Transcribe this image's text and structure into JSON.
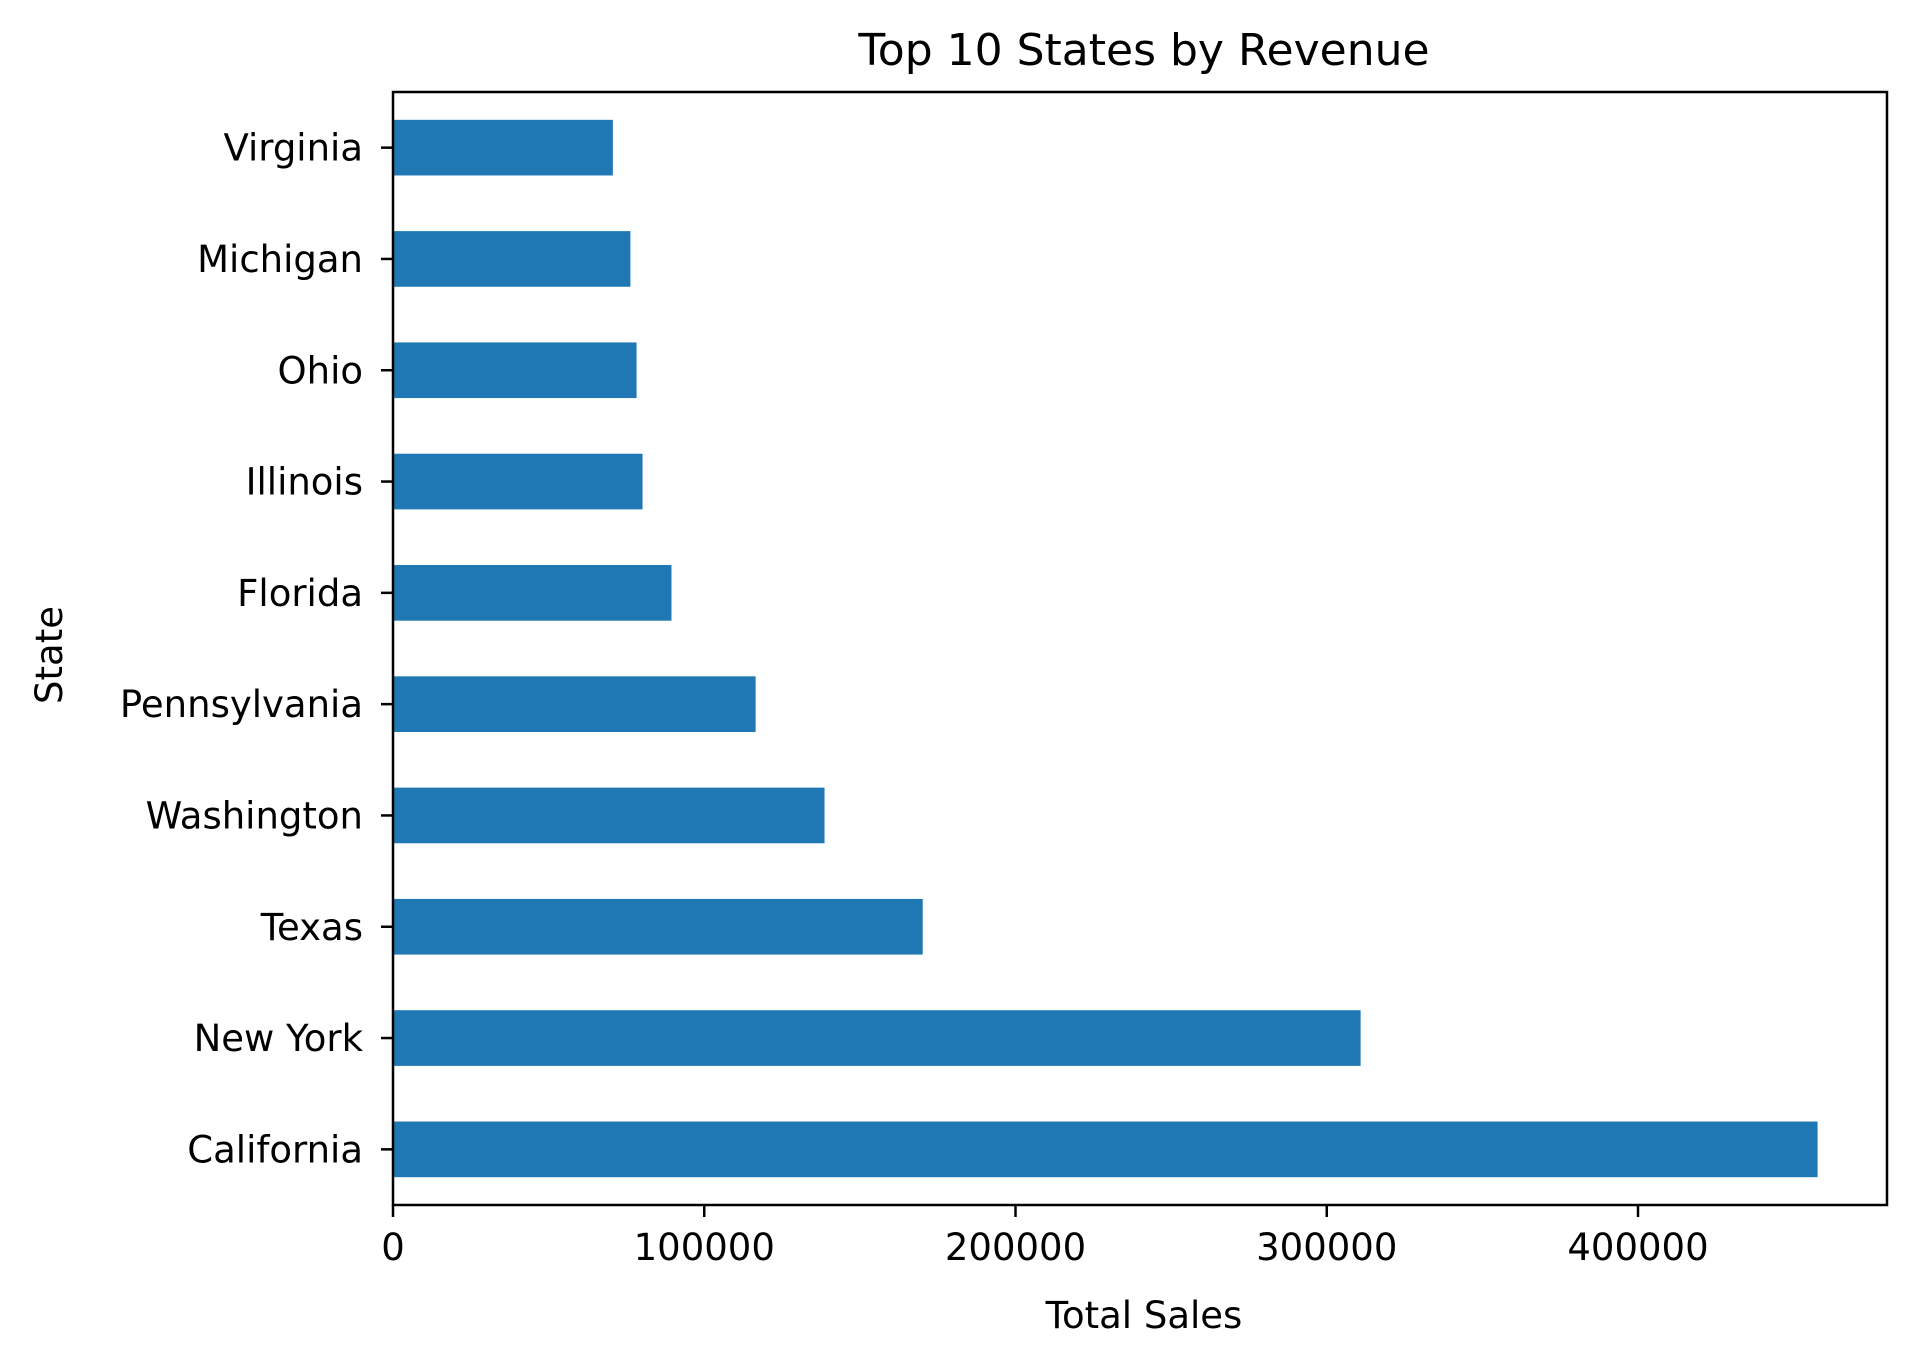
{
  "chart_data": {
    "type": "bar",
    "orientation": "horizontal",
    "title": "Top 10 States by Revenue",
    "xlabel": "Total Sales",
    "ylabel": "State",
    "categories": [
      "California",
      "New York",
      "Texas",
      "Washington",
      "Pennsylvania",
      "Florida",
      "Illinois",
      "Ohio",
      "Michigan",
      "Virginia"
    ],
    "values": [
      457688,
      310876,
      170188,
      138641,
      116512,
      89474,
      80166,
      78258,
      76270,
      70637
    ],
    "xlim": [
      0,
      480000
    ],
    "xticks": [
      0,
      100000,
      200000,
      300000,
      400000
    ],
    "xtick_labels": [
      "0",
      "100000",
      "200000",
      "300000",
      "400000"
    ],
    "grid": false,
    "colors": {
      "bar": "#1f77b4",
      "axis": "#000000"
    }
  }
}
